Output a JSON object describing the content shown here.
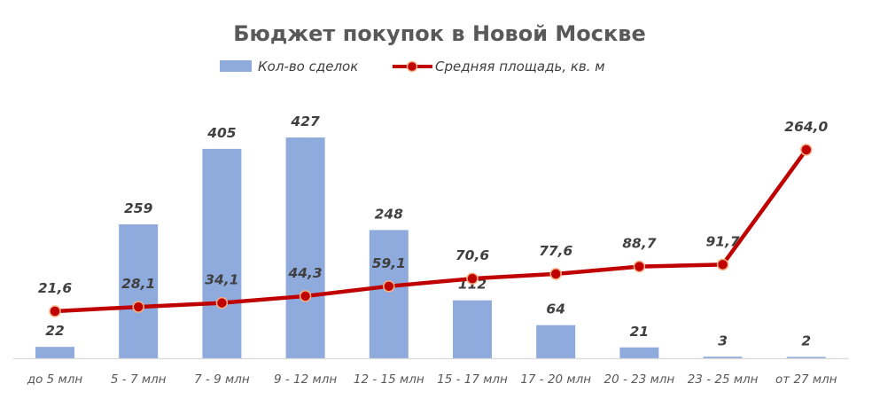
{
  "chart_data": {
    "type": "bar+line",
    "title": "Бюджет покупок в Новой Москве",
    "categories": [
      "до 5 млн",
      "5 - 7 млн",
      "7 - 9 млн",
      "9 - 12 млн",
      "12 - 15 млн",
      "15 - 17 млн",
      "17 - 20 млн",
      "20 - 23 млн",
      "23 - 25 млн",
      "от 27 млн"
    ],
    "series": [
      {
        "name": "Кол-во сделок",
        "type": "bar",
        "color": "#8FAADC",
        "values": [
          22,
          259,
          405,
          427,
          248,
          112,
          64,
          21,
          3,
          2
        ],
        "labels": [
          "22",
          "259",
          "405",
          "427",
          "248",
          "112",
          "64",
          "21",
          "3",
          "2"
        ]
      },
      {
        "name": "Средняя площадь, кв. м",
        "type": "line",
        "color": "#C00000",
        "marker_color": "#C00000",
        "marker_edge": "#F4B183",
        "values": [
          21.6,
          28.1,
          34.1,
          44.3,
          59.1,
          70.6,
          77.6,
          88.7,
          91.7,
          264.0
        ],
        "labels": [
          "21,6",
          "28,1",
          "34,1",
          "44,3",
          "59,1",
          "70,6",
          "77,6",
          "88,7",
          "91,7",
          "264,0"
        ]
      }
    ],
    "xlabel": "",
    "ylabel": "",
    "grid": false,
    "legend_position": "top"
  }
}
